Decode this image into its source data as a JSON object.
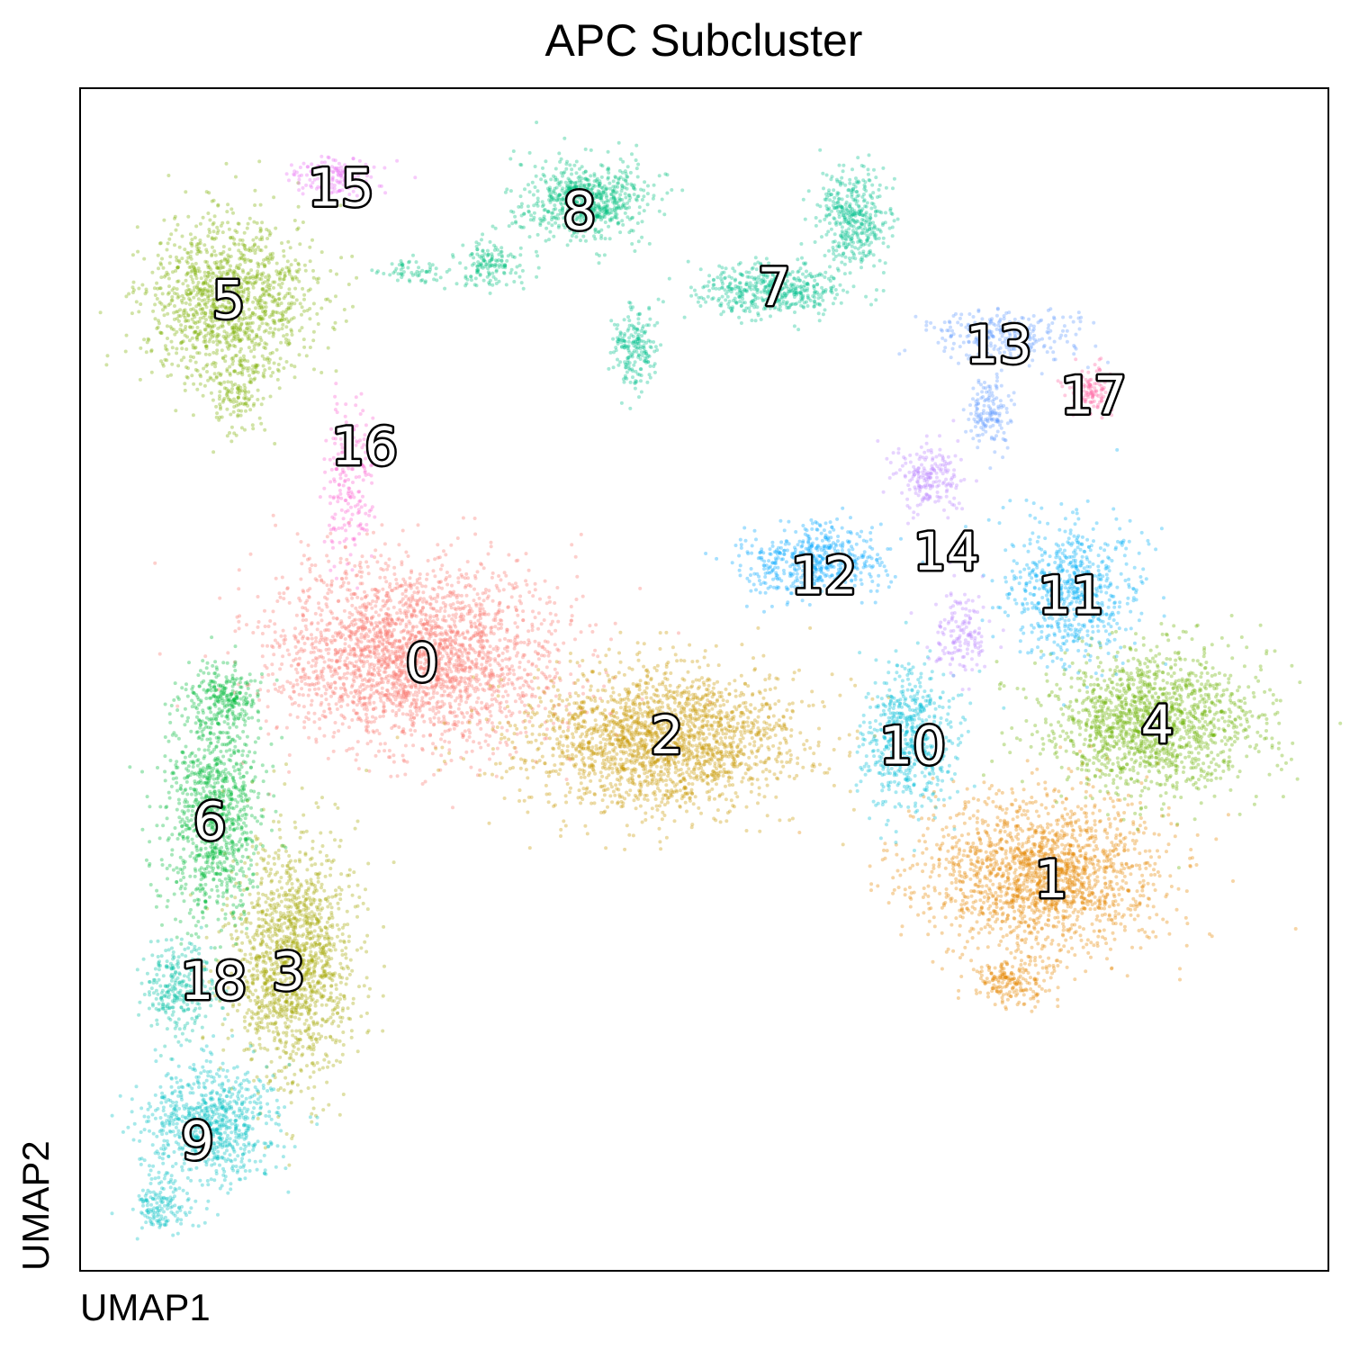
{
  "chart_data": {
    "type": "scatter",
    "title": "APC Subcluster",
    "xlabel": "UMAP1",
    "ylabel": "UMAP2",
    "xlim": [
      0,
      100
    ],
    "ylim": [
      0,
      100
    ],
    "grid": false,
    "legend": "none",
    "clusters": [
      {
        "name": "0",
        "color": "#F8766D",
        "label_pos": [
          27.4,
          51.4
        ],
        "blobs": [
          [
            26.8,
            52.0,
            10.5,
            7.0,
            2600
          ]
        ]
      },
      {
        "name": "1",
        "color": "#E58700",
        "label_pos": [
          77.8,
          33.1
        ],
        "blobs": [
          [
            77.0,
            33.5,
            8.5,
            6.0,
            1800
          ],
          [
            74.5,
            24.5,
            3.0,
            1.8,
            200
          ]
        ]
      },
      {
        "name": "2",
        "color": "#C99800",
        "label_pos": [
          47.0,
          45.3
        ],
        "blobs": [
          [
            46.5,
            45.0,
            10.0,
            5.5,
            2100
          ]
        ]
      },
      {
        "name": "3",
        "color": "#A3A500",
        "label_pos": [
          16.7,
          25.3
        ],
        "blobs": [
          [
            17.0,
            26.0,
            4.5,
            9.0,
            1500
          ]
        ]
      },
      {
        "name": "4",
        "color": "#6BB100",
        "label_pos": [
          86.3,
          46.2
        ],
        "blobs": [
          [
            86.0,
            46.5,
            7.5,
            5.5,
            1500
          ]
        ]
      },
      {
        "name": "5",
        "color": "#7CAE00",
        "label_pos": [
          11.9,
          82.1
        ],
        "blobs": [
          [
            12.0,
            82.0,
            6.0,
            6.5,
            1300
          ],
          [
            12.5,
            74.0,
            1.8,
            3.0,
            120
          ]
        ]
      },
      {
        "name": "6",
        "color": "#00BA38",
        "label_pos": [
          10.4,
          38.0
        ],
        "blobs": [
          [
            10.5,
            38.5,
            3.5,
            8.5,
            1000
          ],
          [
            11.5,
            48.5,
            2.5,
            2.5,
            250
          ]
        ]
      },
      {
        "name": "7",
        "color": "#00C08B",
        "label_pos": [
          55.6,
          83.2
        ],
        "blobs": [
          [
            55.5,
            83.0,
            5.5,
            2.0,
            500
          ],
          [
            62.0,
            89.0,
            2.5,
            3.5,
            400
          ],
          [
            44.5,
            78.0,
            1.6,
            3.0,
            200
          ]
        ]
      },
      {
        "name": "8",
        "color": "#00BF7D",
        "label_pos": [
          40.0,
          89.6
        ],
        "blobs": [
          [
            40.5,
            90.5,
            4.5,
            3.0,
            700
          ],
          [
            33.0,
            85.0,
            2.5,
            2.0,
            150
          ],
          [
            27.0,
            84.5,
            2.5,
            0.8,
            60
          ]
        ]
      },
      {
        "name": "9",
        "color": "#00BFC4",
        "label_pos": [
          9.4,
          11.0
        ],
        "blobs": [
          [
            10.5,
            12.5,
            4.5,
            4.5,
            800
          ],
          [
            6.5,
            5.5,
            2.0,
            2.0,
            150
          ]
        ]
      },
      {
        "name": "10",
        "color": "#00BCD8",
        "label_pos": [
          66.7,
          44.4
        ],
        "blobs": [
          [
            66.5,
            45.0,
            3.5,
            5.5,
            600
          ]
        ]
      },
      {
        "name": "11",
        "color": "#00B0F6",
        "label_pos": [
          79.4,
          57.1
        ],
        "blobs": [
          [
            79.5,
            57.5,
            4.5,
            5.0,
            700
          ]
        ]
      },
      {
        "name": "12",
        "color": "#00A5FF",
        "label_pos": [
          59.6,
          58.8
        ],
        "blobs": [
          [
            58.8,
            60.0,
            5.0,
            2.5,
            550
          ]
        ]
      },
      {
        "name": "13",
        "color": "#619CFF",
        "label_pos": [
          73.6,
          78.3
        ],
        "blobs": [
          [
            74.0,
            79.0,
            5.0,
            2.0,
            300
          ],
          [
            73.0,
            72.5,
            1.5,
            2.5,
            150
          ]
        ]
      },
      {
        "name": "14",
        "color": "#B983FF",
        "label_pos": [
          69.4,
          60.8
        ],
        "blobs": [
          [
            68.0,
            67.0,
            2.5,
            2.5,
            200
          ],
          [
            70.5,
            54.0,
            2.0,
            3.0,
            150
          ]
        ]
      },
      {
        "name": "15",
        "color": "#E76BF3",
        "label_pos": [
          20.9,
          91.6
        ],
        "blobs": [
          [
            20.5,
            92.5,
            3.5,
            1.5,
            150
          ]
        ]
      },
      {
        "name": "16",
        "color": "#FD61D1",
        "label_pos": [
          22.8,
          69.7
        ],
        "blobs": [
          [
            21.5,
            66.5,
            1.8,
            6.0,
            200
          ]
        ]
      },
      {
        "name": "17",
        "color": "#FF67A4",
        "label_pos": [
          81.2,
          74.0
        ],
        "blobs": [
          [
            81.0,
            74.5,
            1.5,
            2.0,
            120
          ]
        ]
      },
      {
        "name": "18",
        "color": "#00C1A3",
        "label_pos": [
          10.7,
          24.5
        ],
        "blobs": [
          [
            8.0,
            24.0,
            2.5,
            3.5,
            300
          ]
        ]
      }
    ]
  }
}
